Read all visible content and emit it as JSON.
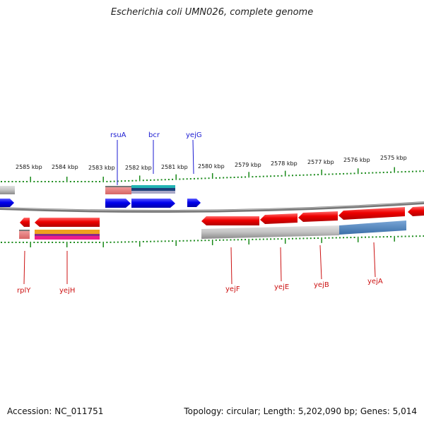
{
  "title": "Escherichia coli UMN026, complete genome",
  "footer": {
    "accession": "Accession: NC_011751",
    "stats": "Topology: circular; Length: 5,202,090 bp; Genes: 5,014"
  },
  "scale": {
    "unit": "kbp",
    "labels": [
      "2585 kbp",
      "2584 kbp",
      "2583 kbp",
      "2582 kbp",
      "2581 kbp",
      "2580 kbp",
      "2579 kbp",
      "2578 kbp",
      "2577 kbp",
      "2576 kbp",
      "2575 kbp"
    ]
  },
  "genes_forward": [
    "rsuA",
    "bcr",
    "yejG"
  ],
  "genes_reverse": [
    "rplY",
    "yejH",
    "yejF",
    "yejE",
    "yejB",
    "yejA"
  ],
  "colors": {
    "forward": "#0000ee",
    "reverse": "#ee0000",
    "forward_label": "#1a1ad1",
    "reverse_label": "#cc1111",
    "backbone": "#777777",
    "tick": "#1a8a1a"
  }
}
